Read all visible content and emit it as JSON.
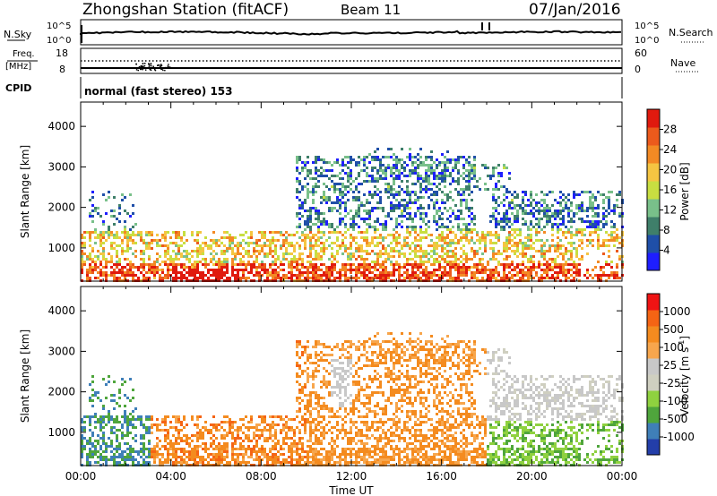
{
  "header": {
    "station": "Zhongshan Station (fitACF)",
    "beam": "Beam 11",
    "date": "07/Jan/2016"
  },
  "panels": {
    "nsky": {
      "label": "N.Sky",
      "right_label": "N.Search",
      "left_ticks": [
        "10^5",
        "10^0"
      ],
      "right_ticks": [
        "10^5",
        "10^0"
      ]
    },
    "freq": {
      "label_line1": "Freq.",
      "label_line2": "[MHz]",
      "left_ticks": [
        "18",
        "8"
      ],
      "right_label": "Nave",
      "right_ticks": [
        "60",
        "0"
      ]
    },
    "cpid": {
      "label": "CPID",
      "text": "normal (fast stereo) 153"
    }
  },
  "x_ticks": [
    "00:00",
    "04:00",
    "08:00",
    "12:00",
    "16:00",
    "20:00",
    "00:00"
  ],
  "x_label": "Time UT",
  "colors": {
    "power": [
      "#1e1eff",
      "#1f4fa8",
      "#3f7f6a",
      "#79c08a",
      "#c8de41",
      "#f5c542",
      "#f38a24",
      "#ec5a1c",
      "#e01a0e"
    ],
    "velocity": [
      "#ef1414",
      "#f56414",
      "#f48b1f",
      "#f7a64d",
      "#c8c8c8",
      "#cfcfc0",
      "#8fd13f",
      "#4fa53c",
      "#3f7fb8",
      "#233ea9"
    ]
  },
  "chart_data": [
    {
      "type": "heatmap",
      "title": "Power",
      "ylabel": "Slant Range [km]",
      "xlabel": "",
      "ylim": [
        180,
        4600
      ],
      "xlim": [
        0,
        24
      ],
      "y_ticks": [
        1000,
        2000,
        3000,
        4000
      ],
      "colorbar_label": "Power [dB]",
      "colorbar_ticks": [
        "4",
        "8",
        "12",
        "16",
        "20",
        "24",
        "28"
      ],
      "grid": false
    },
    {
      "type": "heatmap",
      "title": "Velocity",
      "ylabel": "Slant Range [km]",
      "xlabel": "Time UT",
      "ylim": [
        180,
        4600
      ],
      "xlim": [
        0,
        24
      ],
      "y_ticks": [
        1000,
        2000,
        3000,
        4000
      ],
      "colorbar_label": "Velocity [m s",
      "colorbar_unit_sup": "-1",
      "colorbar_unit_close": "]",
      "colorbar_ticks": [
        "1000",
        "500",
        "100",
        "25",
        "-25",
        "-100",
        "-500",
        "-1000"
      ],
      "grid": false
    }
  ]
}
